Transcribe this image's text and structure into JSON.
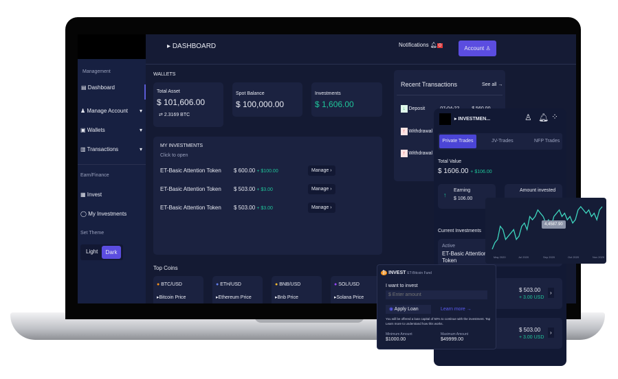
{
  "header": {
    "title": "DASHBOARD",
    "notifications_label": "Notifications",
    "notifications_count": "0",
    "account_label": "Account"
  },
  "sidebar": {
    "section_management": "Management",
    "items": [
      {
        "label": "Dashboard"
      },
      {
        "label": "Manage Account"
      },
      {
        "label": "Wallets"
      },
      {
        "label": "Transactions"
      }
    ],
    "section_earn": "Earn/Finance",
    "earn_items": [
      {
        "label": "Invest"
      },
      {
        "label": "My Investments"
      }
    ],
    "theme_label": "Set Theme",
    "theme_light": "Light",
    "theme_dark": "Dark"
  },
  "wallets": {
    "title": "WALLETS",
    "cards": [
      {
        "label": "Total Asset",
        "value": "$ 101,606.00",
        "sub": "2.3169 BTC"
      },
      {
        "label": "Spot Balance",
        "value": "$ 100,000.00"
      },
      {
        "label": "Investments",
        "value": "$ 1,606.00"
      }
    ]
  },
  "my_investments": {
    "title": "MY INVESTMENTS",
    "hint": "Click to open",
    "rows": [
      {
        "name": "ET-Basic Attention Token",
        "amount": "$ 600.00",
        "change": "+ $100.00",
        "action": "Manage"
      },
      {
        "name": "ET-Basic Attention Token",
        "amount": "$ 503.00",
        "change": "+ $3.00",
        "action": "Manage"
      },
      {
        "name": "ET-Basic Attention Token",
        "amount": "$ 503.00",
        "change": "+ $3.00",
        "action": "Manage"
      }
    ]
  },
  "top_coins": {
    "title": "Top Coins",
    "coins": [
      {
        "pair": "BTC/USD",
        "price_label": "Bitcoin Price",
        "color": "#f7931a"
      },
      {
        "pair": "ETH/USD",
        "price_label": "Ethereum Price",
        "color": "#627eea"
      },
      {
        "pair": "BNB/USD",
        "price_label": "Bnb Price",
        "color": "#f3ba2f"
      },
      {
        "pair": "SOL/USD",
        "price_label": "Solana Price",
        "color": "#9945ff"
      }
    ]
  },
  "recent": {
    "title": "Recent Transactions",
    "see_all": "See all",
    "rows": [
      {
        "type": "Deposit",
        "date": "07-04-22",
        "amount": "$ 560.00"
      },
      {
        "type": "Withdrawal"
      },
      {
        "type": "Withdrawal"
      }
    ]
  },
  "phone": {
    "title": "INVESTMEN...",
    "tabs": [
      "Private Trades",
      "JV-Trades",
      "NFP Trades"
    ],
    "total_label": "Total Value",
    "total": "$ 1606.00",
    "total_change": "+ $106.00",
    "earning_label": "Earning",
    "earning": "$ 106.00",
    "invested_label": "Amount invested",
    "current_title": "Current Investments",
    "active_label": "Active",
    "active_name": "ET-Basic Attention Token",
    "rows": [
      {
        "amount": "$ 503.00",
        "change": "+ 3.00 USD"
      },
      {
        "amount": "$ 503.00",
        "change": "+ 3.00 USD"
      }
    ]
  },
  "chart_data": {
    "type": "line",
    "x_ticks": [
      "May 2020",
      "Jul 2020",
      "Sep 2020",
      "Oct 2020",
      "Nov 2020"
    ],
    "values": [
      2,
      4,
      5,
      9,
      8,
      5,
      6,
      7,
      8,
      5,
      6,
      9,
      10,
      8,
      12,
      11,
      12,
      14,
      13,
      12,
      10,
      11,
      9,
      12,
      13,
      14,
      12,
      13,
      11,
      12,
      10,
      11,
      14,
      15,
      14,
      13,
      14,
      12,
      13,
      11,
      14,
      15
    ],
    "tooltip": "4,4587.90",
    "color": "#3ed6bf"
  },
  "invest": {
    "title": "INVEST",
    "fund": "ET-Bitcoin Fund",
    "want_label": "I want to invest",
    "amount_placeholder": "$ Enter amount",
    "apply_loan": "Apply Loan",
    "learn_more": "Learn more",
    "note": "You will be offered a loan capital of 50% to continue with the investment. Tap Learn more to understand how this works.",
    "min_label": "Minimum Amount",
    "min": "$1000.00",
    "max_label": "Maximum Amount",
    "max": "$49999.00"
  }
}
